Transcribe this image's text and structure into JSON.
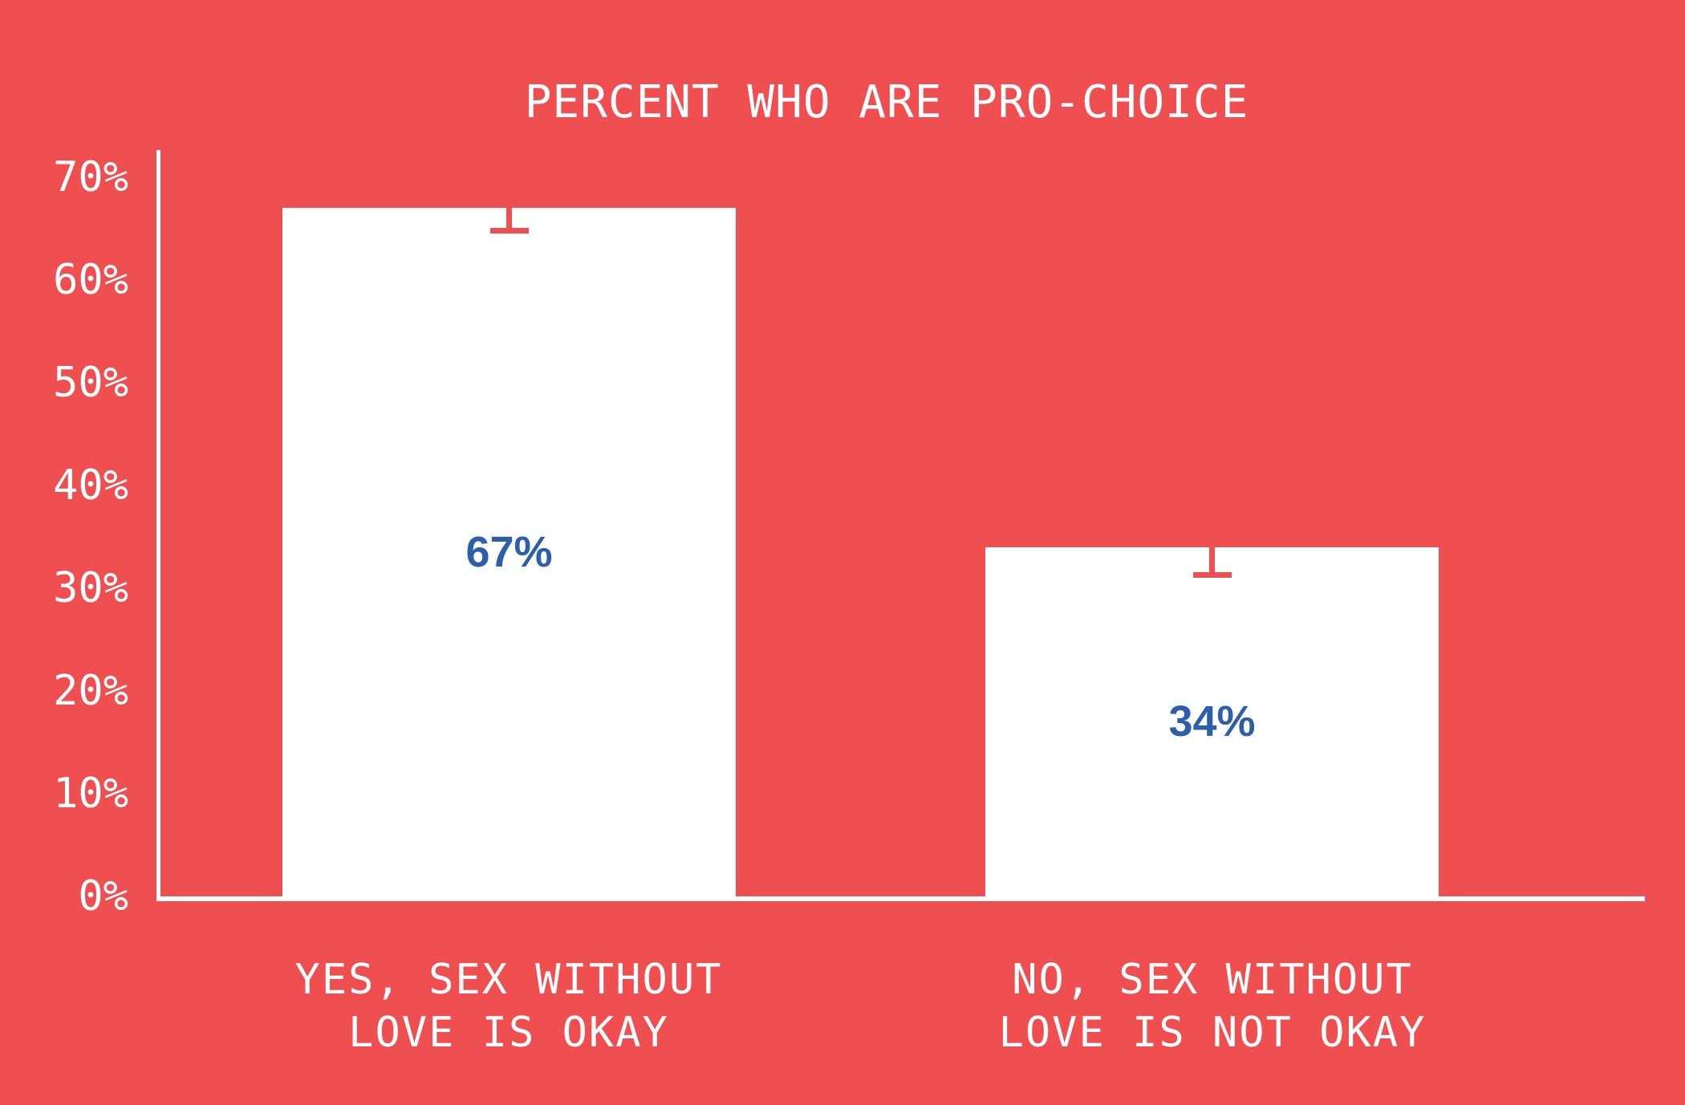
{
  "title": "PERCENT WHO ARE PRO-CHOICE",
  "colors": {
    "background": "#F04F52",
    "bar_fill": "#FFFFFF",
    "axis": "#FFFFFF",
    "value_label": "#2D5FAA",
    "error_bar": "#F04F52"
  },
  "chart_data": {
    "type": "bar",
    "title": "PERCENT WHO ARE PRO-CHOICE",
    "categories": [
      "YES, SEX WITHOUT LOVE IS OKAY",
      "NO, SEX WITHOUT LOVE IS NOT OKAY"
    ],
    "values": [
      67,
      34
    ],
    "value_labels": [
      "67%",
      "34%"
    ],
    "error_low_values": [
      64.5,
      31
    ],
    "y_tick_labels": [
      "70%",
      "60%",
      "50%",
      "40%",
      "30%",
      "20%",
      "10%",
      "0%"
    ],
    "y_tick_values": [
      70,
      60,
      50,
      40,
      30,
      20,
      10,
      0
    ],
    "ylim": [
      0,
      70
    ],
    "xlabel": "",
    "ylabel": "",
    "grid": false,
    "legend": false,
    "bar_value_label_position": "center-of-bar",
    "error_bar_style": "lower-whisker-with-cap"
  },
  "bars": [
    {
      "value_label": "67%",
      "label_line1": "YES, SEX WITHOUT",
      "label_line2": "LOVE IS OKAY"
    },
    {
      "value_label": "34%",
      "label_line1": "NO, SEX WITHOUT",
      "label_line2": "LOVE IS NOT OKAY"
    }
  ]
}
